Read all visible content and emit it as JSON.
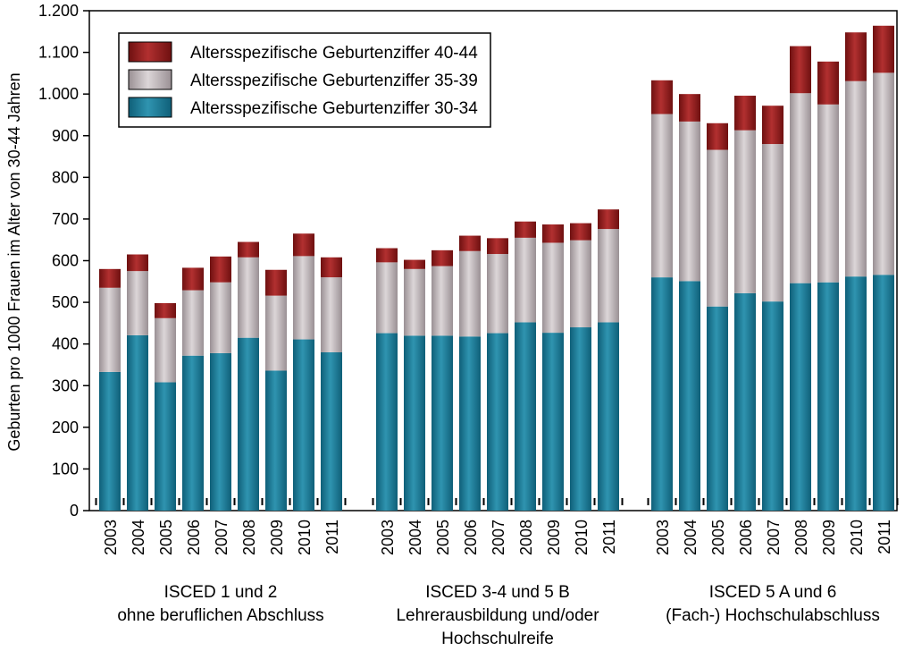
{
  "chart_data": {
    "type": "bar",
    "stacked": true,
    "ylabel": "Geburten pro 1000 Frauen im Alter von 30-44 Jahren",
    "ylim": [
      0,
      1200
    ],
    "yticks": [
      0,
      100,
      200,
      300,
      400,
      500,
      600,
      700,
      800,
      900,
      1000,
      1100,
      1200
    ],
    "ytick_labels": [
      "0",
      "100",
      "200",
      "300",
      "400",
      "500",
      "600",
      "700",
      "800",
      "900",
      "1.000",
      "1.100",
      "1.200"
    ],
    "grid": false,
    "legend_position": "top-left",
    "years": [
      "2003",
      "2004",
      "2005",
      "2006",
      "2007",
      "2008",
      "2009",
      "2010",
      "2011"
    ],
    "groups": [
      {
        "label_lines": [
          "ISCED 1 und 2",
          "ohne beruflichen Abschluss"
        ]
      },
      {
        "label_lines": [
          "ISCED 3-4 und 5 B",
          "Lehrerausbildung und/oder",
          "Hochschulreife"
        ]
      },
      {
        "label_lines": [
          "ISCED 5 A und 6",
          "(Fach-) Hochschulabschluss"
        ]
      }
    ],
    "series": [
      {
        "name": "Altersspezifische Geburtenziffer 30-34",
        "color": "#1c7a96",
        "values": [
          [
            333,
            421,
            308,
            372,
            378,
            415,
            336,
            411,
            380
          ],
          [
            426,
            420,
            420,
            418,
            426,
            452,
            427,
            440,
            452
          ],
          [
            560,
            551,
            490,
            522,
            502,
            546,
            548,
            562,
            566
          ]
        ]
      },
      {
        "name": "Altersspezifische Geburtenziffer 35-39",
        "color": "#b6adb0",
        "values": [
          [
            202,
            154,
            154,
            157,
            170,
            193,
            180,
            200,
            180
          ],
          [
            170,
            160,
            167,
            205,
            190,
            203,
            216,
            209,
            224
          ],
          [
            392,
            383,
            376,
            391,
            378,
            456,
            427,
            469,
            485
          ]
        ]
      },
      {
        "name": "Altersspezifische Geburtenziffer 40-44",
        "color": "#8b1a1a",
        "values": [
          [
            45,
            40,
            36,
            54,
            62,
            37,
            62,
            54,
            48
          ],
          [
            34,
            22,
            38,
            37,
            38,
            39,
            44,
            41,
            47
          ],
          [
            81,
            66,
            64,
            83,
            92,
            113,
            103,
            117,
            113
          ]
        ]
      }
    ]
  }
}
